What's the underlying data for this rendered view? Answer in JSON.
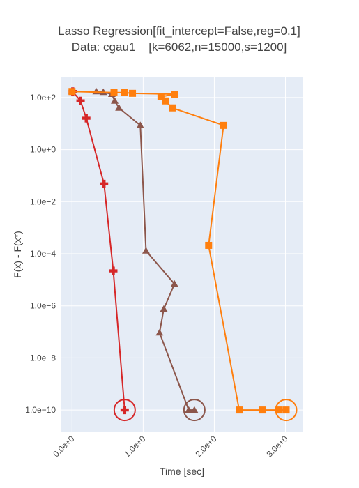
{
  "chart_data": {
    "type": "line",
    "title": "Lasso Regression[fit_intercept=False,reg=0.1]",
    "subtitle": "Data: cgau1    [k=6062,n=15000,s=1200]",
    "x_label": "Time [sec]",
    "y_label": "F(x) - F(x*)",
    "xlim": [
      -0.15,
      3.25
    ],
    "xticks": [
      {
        "value": 0,
        "label": "0.0e+0"
      },
      {
        "value": 1,
        "label": "1.0e+0"
      },
      {
        "value": 2,
        "label": "2.0e+0"
      },
      {
        "value": 3,
        "label": "3.0e+0"
      }
    ],
    "ylim": [
      1.4e-11,
      630
    ],
    "y_scale": "log",
    "yticks": [
      {
        "value": 100,
        "label": "1.0e+2"
      },
      {
        "value": 1,
        "label": "1.0e+0"
      },
      {
        "value": 0.01,
        "label": "1.0e−2"
      },
      {
        "value": 0.0001,
        "label": "1.0e−4"
      },
      {
        "value": 1e-06,
        "label": "1.0e−6"
      },
      {
        "value": 1e-08,
        "label": "1.0e−8"
      },
      {
        "value": 1e-10,
        "label": "1.0e−10"
      }
    ],
    "grid": true,
    "series": [
      {
        "color": "#d62728",
        "marker": "cross",
        "x": [
          0.01,
          0.12,
          0.2,
          0.45,
          0.58,
          0.74
        ],
        "values": [
          170,
          74,
          16,
          0.048,
          2.2e-05,
          1e-10
        ]
      },
      {
        "color": "#8c564b",
        "marker": "triangle",
        "x": [
          0.0,
          0.34,
          0.44,
          0.56,
          0.6,
          0.66,
          0.96,
          1.04,
          1.44,
          1.29,
          1.23,
          1.64,
          1.72
        ],
        "values": [
          170,
          170,
          160,
          135,
          74,
          40,
          8.5,
          0.00013,
          6.9e-06,
          7.6e-07,
          9.3e-08,
          1e-10,
          1e-10
        ]
      },
      {
        "color": "#ff7f0e",
        "marker": "square",
        "x": [
          0.0,
          0.59,
          0.74,
          0.85,
          1.44,
          1.25,
          1.31,
          1.41,
          2.13,
          1.92,
          2.35,
          2.68,
          2.91,
          3.01
        ],
        "values": [
          170,
          155,
          155,
          145,
          135,
          107,
          74,
          40,
          8.5,
          0.00021,
          1e-10,
          1e-10,
          1e-10,
          1e-10
        ]
      }
    ]
  }
}
